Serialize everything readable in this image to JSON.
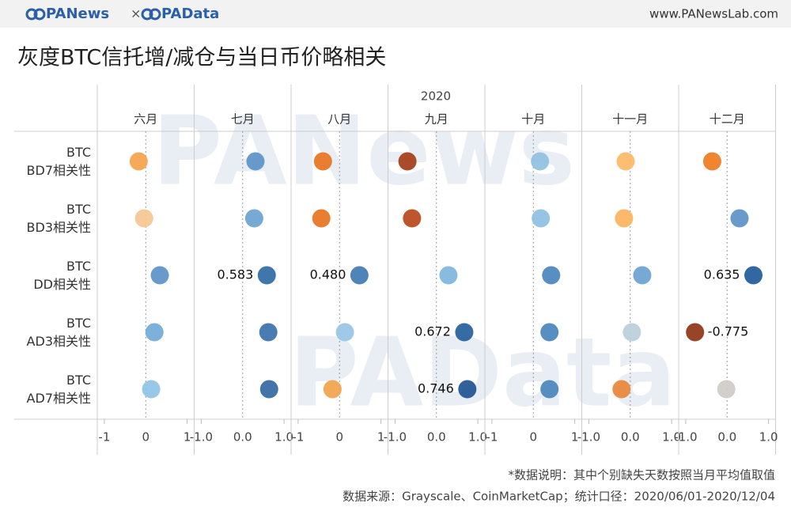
{
  "header": {
    "brand1": "PANews",
    "separator": "×",
    "brand2": "PAData",
    "url": "www.PANewsLab.com"
  },
  "watermark": [
    "PANews",
    "PAData"
  ],
  "chart_data": {
    "type": "dot",
    "title": "灰度BTC信托增/减仓与当日币价略相关",
    "supertitle": "2020",
    "panels": [
      {
        "label": "六月",
        "xlim": [
          -1.17,
          1.17
        ],
        "xticks": [
          -1,
          0,
          1
        ]
      },
      {
        "label": "七月",
        "xlim": [
          -1.17,
          1.17
        ],
        "xticks": [
          {
            "value": -1,
            "label": "-1.0"
          },
          {
            "value": 0,
            "label": "0.0"
          },
          {
            "value": 1,
            "label": "1.0"
          }
        ]
      },
      {
        "label": "八月",
        "xlim": [
          -1.17,
          1.17
        ],
        "xticks": [
          -1,
          0,
          1
        ]
      },
      {
        "label": "九月",
        "xlim": [
          -1.17,
          1.17
        ],
        "xticks": [
          {
            "value": -1,
            "label": "-1.0"
          },
          {
            "value": 0,
            "label": "0.0"
          },
          {
            "value": 1,
            "label": "1.0"
          }
        ]
      },
      {
        "label": "十月",
        "xlim": [
          -1.17,
          1.17
        ],
        "xticks": [
          -1,
          0,
          1
        ]
      },
      {
        "label": "十一月",
        "xlim": [
          -1.17,
          1.17
        ],
        "xticks": [
          {
            "value": -1,
            "label": "-1.0"
          },
          {
            "value": 0,
            "label": "0.0"
          },
          {
            "value": 1,
            "label": "1.0"
          }
        ]
      },
      {
        "label": "十二月",
        "xlim": [
          -1.17,
          1.17
        ],
        "xticks": [
          {
            "value": -1,
            "label": "-1.0"
          },
          {
            "value": 0,
            "label": "0.0"
          },
          {
            "value": 1,
            "label": "1.0"
          }
        ]
      }
    ],
    "series": [
      {
        "name": "BTC\nBD7相关性",
        "values": [
          -0.17,
          0.31,
          -0.4,
          -0.7,
          0.16,
          -0.11,
          -0.36
        ],
        "colors": [
          "#f5a24b",
          "#5b93c7",
          "#e8731e",
          "#a33c17",
          "#8fc0e0",
          "#fdb867",
          "#ee7a20"
        ],
        "value_labels": [
          null,
          null,
          null,
          null,
          null,
          null,
          null
        ]
      },
      {
        "name": "BTC\nBD3相关性",
        "values": [
          -0.04,
          0.28,
          -0.44,
          -0.59,
          0.18,
          -0.15,
          0.3
        ],
        "colors": [
          "#f6c590",
          "#6aa3d0",
          "#e8731e",
          "#b9471a",
          "#8cbfe2",
          "#fcb35e",
          "#5b93c7"
        ],
        "value_labels": [
          null,
          null,
          null,
          null,
          null,
          null,
          null
        ]
      },
      {
        "name": "BTC\nDD相关性",
        "values": [
          0.34,
          0.583,
          0.48,
          0.29,
          0.43,
          0.29,
          0.635
        ],
        "colors": [
          "#5b93c7",
          "#2f6aa4",
          "#3f7ab2",
          "#7fb4dd",
          "#4a86bd",
          "#6aa3d0",
          "#1f5b99"
        ],
        "value_labels": [
          null,
          "0.583",
          "0.480",
          null,
          null,
          null,
          "0.635"
        ]
      },
      {
        "name": "BTC\nAD3相关性",
        "values": [
          0.21,
          0.62,
          0.13,
          0.672,
          0.39,
          0.04,
          -0.775
        ],
        "colors": [
          "#72aad7",
          "#3a71aa",
          "#97c6e5",
          "#255f9c",
          "#4a86bd",
          "#b8cfda",
          "#8e3416"
        ],
        "value_labels": [
          null,
          null,
          null,
          "0.672",
          null,
          null,
          "-0.775"
        ]
      },
      {
        "name": "BTC\nAD7相关性",
        "values": [
          0.13,
          0.64,
          -0.17,
          0.746,
          0.39,
          -0.21,
          -0.02
        ],
        "colors": [
          "#8fc3e6",
          "#3369a3",
          "#f1a24a",
          "#1f5493",
          "#4a86bd",
          "#e8863a",
          "#cfcbc6"
        ],
        "value_labels": [
          null,
          null,
          null,
          "0.746",
          null,
          null,
          null
        ]
      }
    ]
  },
  "footer": {
    "note": "*数据说明：其中个别缺失天数按照当月平均值取值",
    "source": "数据来源：Grayscale、CoinMarketCap；统计口径：2020/06/01-2020/12/04"
  }
}
